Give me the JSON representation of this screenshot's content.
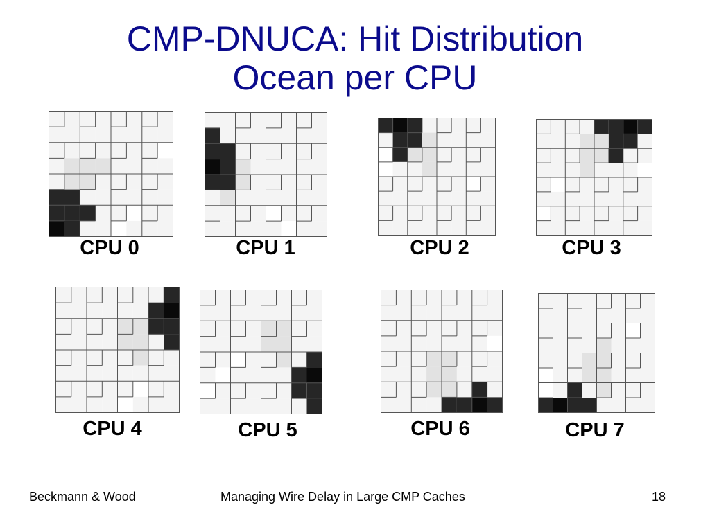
{
  "slide": {
    "title_line1": "CMP-DNUCA: Hit Distribution",
    "title_line2": "Ocean per CPU",
    "colors": {
      "title": "#0b0b8c",
      "cell_base": "#f4f4f4",
      "cell_blank": "#ffffff",
      "cell_faint": "#e2e2e2",
      "cell_hot": "#262626",
      "cell_hottest": "#0a0a0a"
    },
    "footer": {
      "left": "Beckmann & Wood",
      "center": "Managing Wire Delay in Large CMP Caches",
      "page": "18"
    }
  },
  "cpus": [
    {
      "label": "CPU 0",
      "ocean": "bottom-left"
    },
    {
      "label": "CPU 1",
      "ocean": "left"
    },
    {
      "label": "CPU 2",
      "ocean": "top-left"
    },
    {
      "label": "CPU 3",
      "ocean": "top-right"
    },
    {
      "label": "CPU 4",
      "ocean": "right-top"
    },
    {
      "label": "CPU 5",
      "ocean": "right"
    },
    {
      "label": "CPU 6",
      "ocean": "bottom-right"
    },
    {
      "label": "CPU 7",
      "ocean": "bottom-left-center"
    }
  ]
}
